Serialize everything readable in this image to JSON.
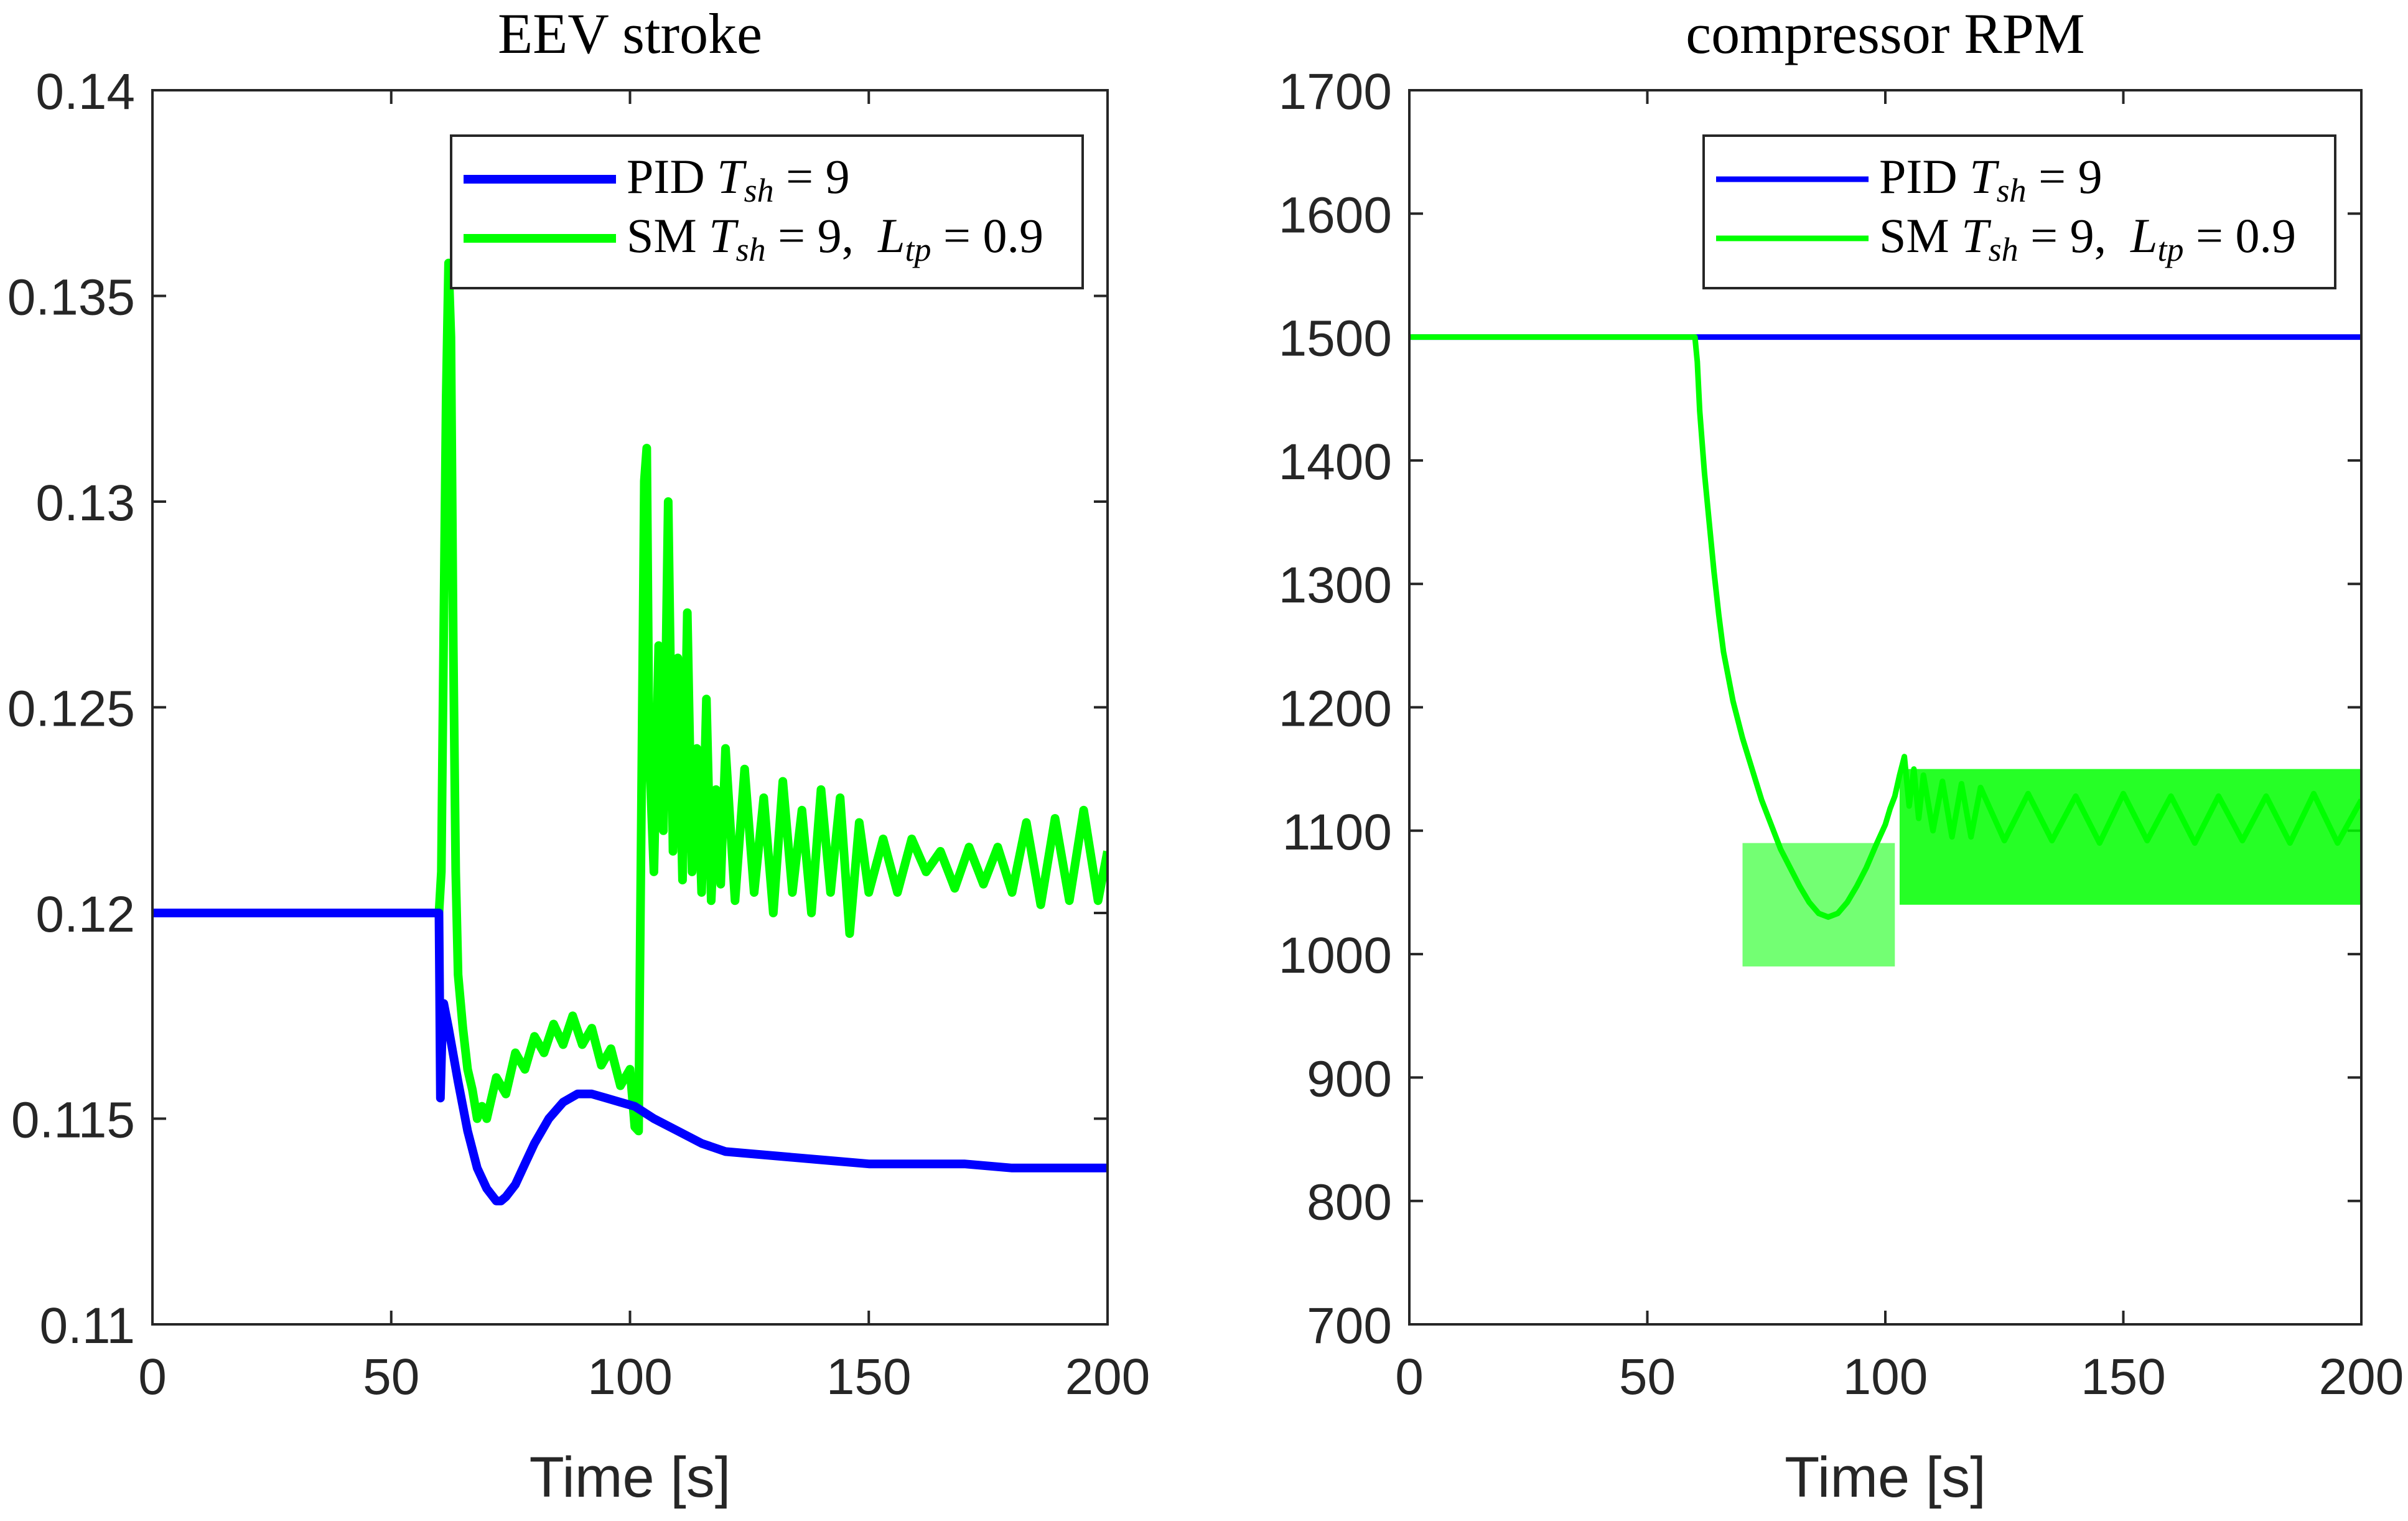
{
  "chart_data": [
    {
      "type": "line",
      "title": "EEV stroke",
      "xlabel": "Time [s]",
      "ylabel": "",
      "xlim": [
        0,
        200
      ],
      "ylim": [
        0.11,
        0.14
      ],
      "xticks": [
        0,
        50,
        100,
        150,
        200
      ],
      "xtick_labels": [
        "0",
        "50",
        "100",
        "150",
        "200"
      ],
      "yticks": [
        0.11,
        0.115,
        0.12,
        0.125,
        0.13,
        0.135,
        0.14
      ],
      "ytick_labels": [
        "0.11",
        "0.115",
        "0.12",
        "0.125",
        "0.13",
        "0.135",
        "0.14"
      ],
      "legend_position": "top-right",
      "series": [
        {
          "name": "PID T_sh = 9",
          "legend_label": {
            "main": "PID ",
            "var": "T",
            "sub": "sh",
            "rest": " = 9"
          },
          "color": "#0000ff",
          "x": [
            0,
            60,
            60.1,
            60.3,
            60.6,
            61,
            62,
            64,
            66,
            68,
            70,
            72,
            73,
            74,
            76,
            78,
            80,
            83,
            86,
            89,
            92,
            95,
            98,
            101,
            105,
            110,
            115,
            120,
            130,
            140,
            150,
            160,
            170,
            180,
            190,
            200
          ],
          "values": [
            0.12,
            0.12,
            0.1185,
            0.1155,
            0.1168,
            0.1178,
            0.1172,
            0.1159,
            0.1147,
            0.1138,
            0.1133,
            0.113,
            0.113,
            0.1131,
            0.1134,
            0.1139,
            0.1144,
            0.115,
            0.1154,
            0.1156,
            0.1156,
            0.1155,
            0.1154,
            0.1153,
            0.115,
            0.1147,
            0.1144,
            0.1142,
            0.1141,
            0.114,
            0.1139,
            0.1139,
            0.1139,
            0.1138,
            0.1138,
            0.1138
          ]
        },
        {
          "name": "SM T_sh = 9, L_tp = 0.9",
          "legend_label": {
            "main": "SM ",
            "var": "T",
            "sub": "sh",
            "rest": " = 9,  ",
            "var2": "L",
            "sub2": "tp",
            "rest2": " = 0.9"
          },
          "color": "#00ff00",
          "x": [
            0,
            60,
            60.5,
            61,
            61.5,
            62,
            62.5,
            63,
            63.5,
            64,
            65,
            66,
            67,
            68,
            69,
            70,
            72,
            74,
            76,
            78,
            80,
            82,
            84,
            86,
            88,
            90,
            92,
            94,
            96,
            98,
            100,
            101,
            101.8,
            102,
            102.5,
            103,
            103.5,
            104,
            105,
            106,
            107,
            108,
            109,
            110,
            111,
            112,
            113,
            114,
            115,
            116,
            117,
            118,
            119,
            120,
            122,
            124,
            126,
            128,
            130,
            132,
            134,
            136,
            138,
            140,
            142,
            144,
            146,
            148,
            150,
            153,
            156,
            159,
            162,
            165,
            168,
            171,
            174,
            177,
            180,
            183,
            186,
            189,
            192,
            195,
            198,
            200
          ],
          "values": [
            0.12,
            0.12,
            0.121,
            0.127,
            0.1325,
            0.1358,
            0.134,
            0.1265,
            0.121,
            0.1185,
            0.1172,
            0.1162,
            0.1157,
            0.115,
            0.1153,
            0.115,
            0.116,
            0.1156,
            0.1166,
            0.1162,
            0.117,
            0.1166,
            0.1173,
            0.1168,
            0.1175,
            0.1168,
            0.1172,
            0.1163,
            0.1167,
            0.1158,
            0.1162,
            0.1148,
            0.1147,
            0.1175,
            0.124,
            0.1305,
            0.1313,
            0.124,
            0.121,
            0.1265,
            0.122,
            0.13,
            0.1215,
            0.1262,
            0.1208,
            0.1273,
            0.121,
            0.124,
            0.1205,
            0.1252,
            0.1203,
            0.123,
            0.1207,
            0.124,
            0.1203,
            0.1235,
            0.1205,
            0.1228,
            0.12,
            0.1232,
            0.1205,
            0.1225,
            0.12,
            0.123,
            0.1205,
            0.1228,
            0.1195,
            0.1222,
            0.1205,
            0.1218,
            0.1205,
            0.1218,
            0.121,
            0.1215,
            0.1206,
            0.1216,
            0.1207,
            0.1216,
            0.1205,
            0.1222,
            0.1202,
            0.1223,
            0.1203,
            0.1225,
            0.1203,
            0.1215
          ]
        }
      ]
    },
    {
      "type": "line",
      "title": "compressor RPM",
      "xlabel": "Time [s]",
      "ylabel": "",
      "xlim": [
        0,
        200
      ],
      "ylim": [
        700,
        1700
      ],
      "xticks": [
        0,
        50,
        100,
        150,
        200
      ],
      "xtick_labels": [
        "0",
        "50",
        "100",
        "150",
        "200"
      ],
      "yticks": [
        700,
        800,
        900,
        1000,
        1100,
        1200,
        1300,
        1400,
        1500,
        1600,
        1700
      ],
      "ytick_labels": [
        "700",
        "800",
        "900",
        "1000",
        "1100",
        "1200",
        "1300",
        "1400",
        "1500",
        "1600",
        "1700"
      ],
      "legend_position": "top-right",
      "series": [
        {
          "name": "PID T_sh = 9",
          "legend_label": {
            "main": "PID ",
            "var": "T",
            "sub": "sh",
            "rest": " = 9"
          },
          "color": "#0000ff",
          "x": [
            0,
            200
          ],
          "values": [
            1500,
            1500
          ]
        },
        {
          "name": "SM T_sh = 9, L_tp = 0.9",
          "legend_label": {
            "main": "SM ",
            "var": "T",
            "sub": "sh",
            "rest": " = 9,  ",
            "var2": "L",
            "sub2": "tp",
            "rest2": " = 0.9"
          },
          "color": "#00ff00",
          "x": [
            0,
            60,
            60.5,
            61,
            62,
            63,
            64,
            65,
            66,
            68,
            70,
            72,
            74,
            76,
            78,
            80,
            82,
            84,
            86,
            88,
            90,
            92,
            94,
            96,
            98,
            100,
            101,
            102,
            103,
            104,
            105,
            106,
            107,
            108,
            110,
            112,
            114,
            116,
            118,
            120,
            125,
            130,
            135,
            140,
            145,
            150,
            155,
            160,
            165,
            170,
            175,
            180,
            185,
            190,
            195,
            200
          ],
          "values": [
            1500,
            1500,
            1480,
            1440,
            1390,
            1350,
            1310,
            1275,
            1245,
            1205,
            1175,
            1150,
            1125,
            1105,
            1085,
            1070,
            1055,
            1042,
            1033,
            1030,
            1033,
            1042,
            1055,
            1070,
            1088,
            1105,
            1118,
            1128,
            1145,
            1160,
            1120,
            1150,
            1110,
            1145,
            1100,
            1140,
            1095,
            1138,
            1095,
            1135,
            1092,
            1130,
            1092,
            1128,
            1090,
            1130,
            1092,
            1128,
            1090,
            1128,
            1092,
            1128,
            1090,
            1130,
            1090,
            1125
          ]
        }
      ]
    }
  ]
}
